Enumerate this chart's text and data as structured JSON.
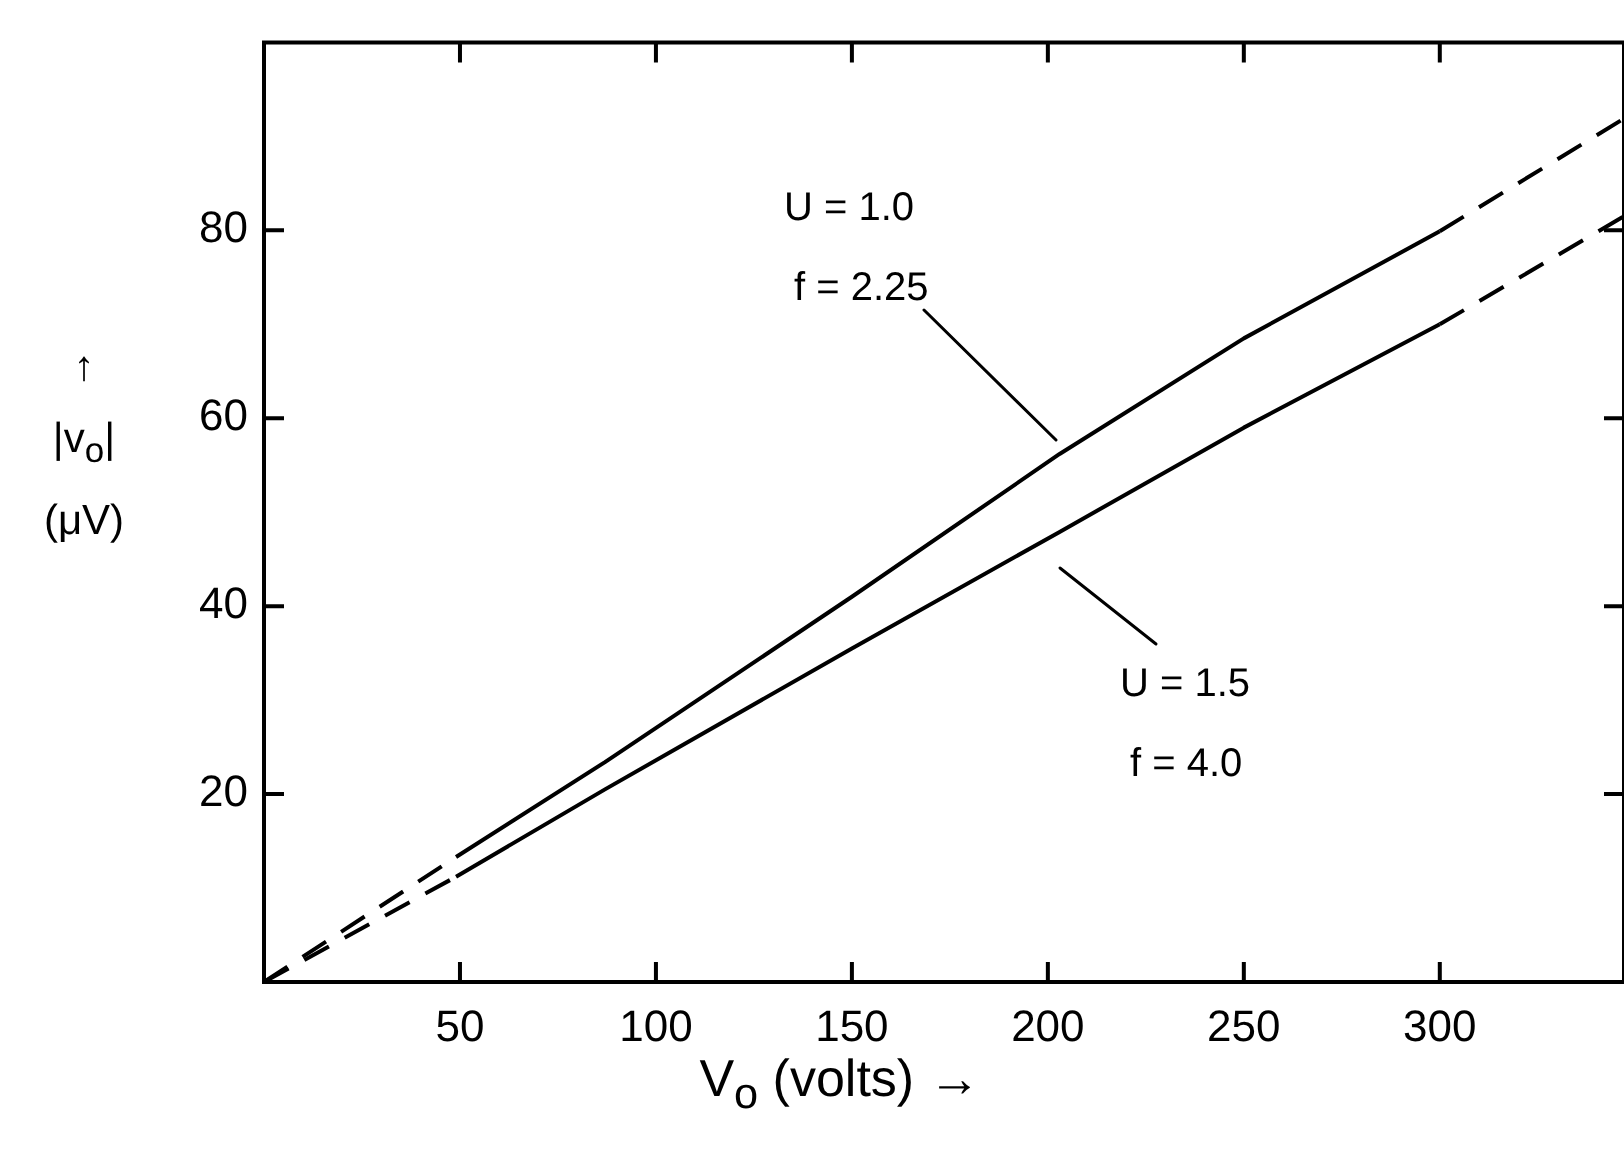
{
  "chart_data": {
    "type": "line",
    "xlabel": "V$_{o}$ (volts) →",
    "ylabel": "↑ |v$_{o}$| (μV)",
    "xlim": [
      0,
      347
    ],
    "ylim": [
      0,
      100
    ],
    "xticks": [
      50,
      100,
      150,
      200,
      250,
      300
    ],
    "yticks": [
      20,
      40,
      60,
      80
    ],
    "grid": false,
    "legend": false,
    "marker": "none",
    "series": [
      {
        "color": "#000000",
        "line_style": "solid",
        "x": [
          49,
          87,
          150,
          203,
          250,
          300
        ],
        "values": [
          13.3,
          23.4,
          41,
          56.2,
          68.5,
          79.9
        ]
      },
      {
        "color": "#000000",
        "line_style": "dashed",
        "x": [
          0,
          49,
          null,
          300,
          347
        ],
        "values": [
          0,
          13.3,
          null,
          79.9,
          91.9
        ]
      },
      {
        "color": "#000000",
        "line_style": "solid",
        "x": [
          49,
          87,
          150,
          203,
          250,
          300
        ],
        "values": [
          11.2,
          20.5,
          35.5,
          47.9,
          59,
          70
        ]
      },
      {
        "color": "#000000",
        "line_style": "dashed",
        "x": [
          0,
          49,
          null,
          300,
          347
        ],
        "values": [
          0,
          11.2,
          null,
          70,
          81.5
        ]
      }
    ],
    "annotations": [
      "U = 1.0\nf = 2.25",
      "U = 1.5\nf = 4.0"
    ]
  }
}
